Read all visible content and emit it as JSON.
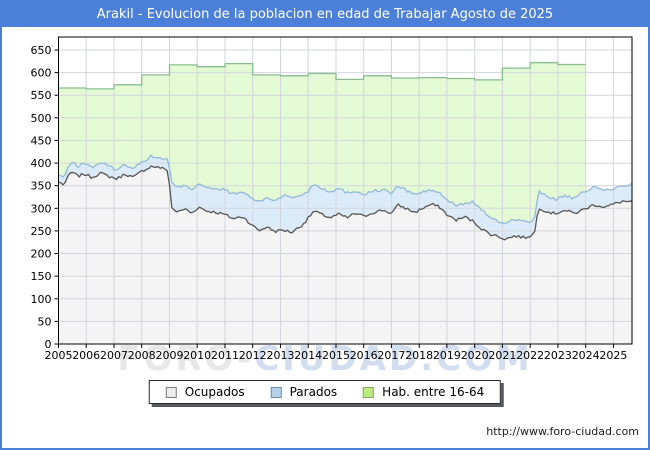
{
  "header": {
    "title": "Arakil - Evolucion de la poblacion en edad de Trabajar Agosto de 2025"
  },
  "watermark": {
    "part1": "FORO-",
    "part2": "CIUDAD.COM"
  },
  "footer": {
    "url": "http://www.foro-ciudad.com"
  },
  "colors": {
    "frame_blue": "#4c80d8",
    "plot_border": "#000000",
    "grid": "#d3d5dd",
    "hab_fill": "#e3fad5",
    "hab_line": "#87bd8f",
    "parados_fill": "#dcebf9",
    "parados_line": "#94b8d8",
    "ocupados_fill": "#f4f4f4",
    "ocupados_line": "#555555"
  },
  "legend": {
    "items": [
      {
        "label": "Ocupados",
        "swatch_color": "#ededed",
        "swatch_border": "#7a7a7a"
      },
      {
        "label": "Parados",
        "swatch_color": "#b7d0ea",
        "swatch_border": "#6b8fb3"
      },
      {
        "label": "Hab. entre 16-64",
        "swatch_color": "#bde981",
        "swatch_border": "#86a85a"
      }
    ]
  },
  "chart_data": {
    "type": "area",
    "title": "Arakil - Evolucion de la poblacion en edad de Trabajar Agosto de 2025",
    "xlabel": "",
    "ylabel": "",
    "x_unit": "year",
    "xlim": [
      2005,
      2025.67
    ],
    "ylim": [
      0,
      683
    ],
    "grid": true,
    "grid_color": "#d3d5dd",
    "legend_position": "bottom",
    "y_ticks": [
      0,
      50,
      100,
      150,
      200,
      250,
      300,
      350,
      400,
      450,
      500,
      550,
      600,
      650
    ],
    "x_ticks": [
      2005,
      2006,
      2007,
      2008,
      2009,
      2010,
      2011,
      2012,
      2013,
      2014,
      2015,
      2016,
      2017,
      2018,
      2019,
      2020,
      2021,
      2022,
      2023,
      2024,
      2025
    ],
    "noise": {
      "amplitude": 3.2,
      "seeds": {
        "parados": 13,
        "ocupados": 7
      }
    },
    "series": [
      {
        "name": "Hab. entre 16-64",
        "style": "step-annual",
        "fill": "#e3fad5",
        "line": "#87bd8f",
        "years": [
          2005,
          2006,
          2007,
          2008,
          2009,
          2010,
          2011,
          2012,
          2013,
          2014,
          2015,
          2016,
          2017,
          2018,
          2019,
          2020,
          2021,
          2022,
          2023
        ],
        "values": [
          566,
          564,
          573,
          595,
          617,
          613,
          620,
          595,
          593,
          598,
          585,
          593,
          588,
          589,
          587,
          584,
          610,
          622,
          618
        ],
        "ends_at": 2024.0
      },
      {
        "name": "Parados (linea superior: Ocupados + Parados)",
        "style": "monthly",
        "seed_key": "parados",
        "fill": "#dcebf9",
        "line": "#94b8d8",
        "anchors": [
          [
            2005.0,
            373
          ],
          [
            2005.2,
            369
          ],
          [
            2005.45,
            403
          ],
          [
            2005.7,
            393
          ],
          [
            2005.95,
            401
          ],
          [
            2006.2,
            390
          ],
          [
            2006.5,
            401
          ],
          [
            2006.8,
            394
          ],
          [
            2007.1,
            385
          ],
          [
            2007.4,
            397
          ],
          [
            2007.7,
            389
          ],
          [
            2008.0,
            402
          ],
          [
            2008.35,
            415
          ],
          [
            2008.65,
            411
          ],
          [
            2008.95,
            407
          ],
          [
            2009.08,
            357
          ],
          [
            2009.3,
            344
          ],
          [
            2009.55,
            354
          ],
          [
            2009.8,
            341
          ],
          [
            2010.05,
            356
          ],
          [
            2010.35,
            345
          ],
          [
            2010.7,
            341
          ],
          [
            2011.0,
            342
          ],
          [
            2011.3,
            331
          ],
          [
            2011.65,
            336
          ],
          [
            2012.0,
            321
          ],
          [
            2012.25,
            314
          ],
          [
            2012.5,
            324
          ],
          [
            2012.8,
            317
          ],
          [
            2013.1,
            329
          ],
          [
            2013.4,
            323
          ],
          [
            2013.7,
            329
          ],
          [
            2013.95,
            334
          ],
          [
            2014.2,
            355
          ],
          [
            2014.5,
            344
          ],
          [
            2014.8,
            337
          ],
          [
            2015.1,
            344
          ],
          [
            2015.4,
            334
          ],
          [
            2015.7,
            339
          ],
          [
            2016.0,
            331
          ],
          [
            2016.35,
            338
          ],
          [
            2016.7,
            341
          ],
          [
            2017.0,
            334
          ],
          [
            2017.25,
            349
          ],
          [
            2017.55,
            339
          ],
          [
            2017.85,
            331
          ],
          [
            2018.15,
            336
          ],
          [
            2018.45,
            341
          ],
          [
            2018.75,
            333
          ],
          [
            2019.05,
            315
          ],
          [
            2019.35,
            306
          ],
          [
            2019.65,
            311
          ],
          [
            2019.95,
            314
          ],
          [
            2020.25,
            298
          ],
          [
            2020.55,
            278
          ],
          [
            2020.85,
            271
          ],
          [
            2021.1,
            267
          ],
          [
            2021.45,
            277
          ],
          [
            2021.8,
            270
          ],
          [
            2022.15,
            272
          ],
          [
            2022.3,
            337
          ],
          [
            2022.6,
            328
          ],
          [
            2022.9,
            319
          ],
          [
            2023.2,
            328
          ],
          [
            2023.6,
            321
          ],
          [
            2023.95,
            338
          ],
          [
            2024.3,
            346
          ],
          [
            2024.7,
            340
          ],
          [
            2025.0,
            343
          ],
          [
            2025.35,
            350
          ],
          [
            2025.67,
            354
          ]
        ]
      },
      {
        "name": "Ocupados",
        "style": "monthly",
        "seed_key": "ocupados",
        "fill": "#f4f4f4",
        "line": "#555555",
        "anchors": [
          [
            2005.0,
            358
          ],
          [
            2005.2,
            352
          ],
          [
            2005.45,
            381
          ],
          [
            2005.7,
            371
          ],
          [
            2005.95,
            376
          ],
          [
            2006.2,
            368
          ],
          [
            2006.5,
            378
          ],
          [
            2006.8,
            371
          ],
          [
            2007.1,
            365
          ],
          [
            2007.4,
            376
          ],
          [
            2007.7,
            368
          ],
          [
            2008.0,
            382
          ],
          [
            2008.35,
            393
          ],
          [
            2008.65,
            390
          ],
          [
            2008.95,
            384
          ],
          [
            2009.08,
            301
          ],
          [
            2009.3,
            291
          ],
          [
            2009.55,
            299
          ],
          [
            2009.8,
            289
          ],
          [
            2010.05,
            303
          ],
          [
            2010.35,
            294
          ],
          [
            2010.7,
            291
          ],
          [
            2011.0,
            286
          ],
          [
            2011.3,
            277
          ],
          [
            2011.65,
            282
          ],
          [
            2012.0,
            261
          ],
          [
            2012.25,
            251
          ],
          [
            2012.5,
            259
          ],
          [
            2012.8,
            249
          ],
          [
            2013.1,
            252
          ],
          [
            2013.4,
            247
          ],
          [
            2013.7,
            259
          ],
          [
            2013.95,
            274
          ],
          [
            2014.2,
            294
          ],
          [
            2014.5,
            286
          ],
          [
            2014.8,
            279
          ],
          [
            2015.1,
            287
          ],
          [
            2015.4,
            279
          ],
          [
            2015.7,
            289
          ],
          [
            2016.0,
            282
          ],
          [
            2016.35,
            291
          ],
          [
            2016.7,
            296
          ],
          [
            2017.0,
            289
          ],
          [
            2017.25,
            307
          ],
          [
            2017.55,
            299
          ],
          [
            2017.85,
            291
          ],
          [
            2018.15,
            301
          ],
          [
            2018.45,
            309
          ],
          [
            2018.75,
            302
          ],
          [
            2019.05,
            283
          ],
          [
            2019.35,
            274
          ],
          [
            2019.65,
            281
          ],
          [
            2019.95,
            271
          ],
          [
            2020.25,
            255
          ],
          [
            2020.55,
            243
          ],
          [
            2020.85,
            238
          ],
          [
            2021.1,
            232
          ],
          [
            2021.45,
            239
          ],
          [
            2021.8,
            235
          ],
          [
            2022.15,
            243
          ],
          [
            2022.3,
            302
          ],
          [
            2022.6,
            293
          ],
          [
            2022.9,
            288
          ],
          [
            2023.2,
            296
          ],
          [
            2023.6,
            289
          ],
          [
            2023.95,
            298
          ],
          [
            2024.3,
            308
          ],
          [
            2024.7,
            303
          ],
          [
            2025.0,
            309
          ],
          [
            2025.35,
            316
          ],
          [
            2025.67,
            313
          ]
        ]
      }
    ]
  }
}
